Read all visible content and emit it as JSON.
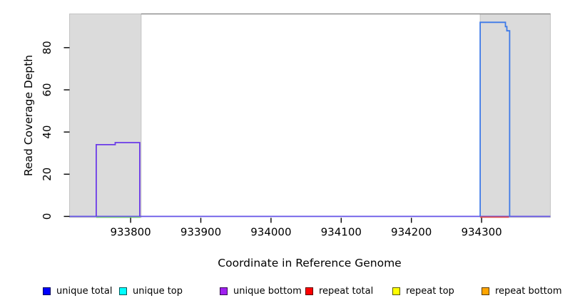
{
  "chart_data": {
    "type": "line",
    "title": "",
    "xlabel": "Coordinate in Reference Genome",
    "ylabel": "Read Coverage Depth",
    "xlim": [
      933713,
      934398
    ],
    "ylim": [
      0,
      96
    ],
    "x_ticks": [
      933800,
      933900,
      934000,
      934100,
      934200,
      934300
    ],
    "y_ticks": [
      0,
      20,
      40,
      60,
      80
    ],
    "grid": false,
    "legend_position": "bottom",
    "legend": [
      {
        "label": "unique total",
        "color": "#0000FF"
      },
      {
        "label": "unique top",
        "color": "#00FFFF"
      },
      {
        "label": "unique bottom",
        "color": "#A020F0"
      },
      {
        "label": "repeat total",
        "color": "#FF0000"
      },
      {
        "label": "repeat top",
        "color": "#FFFF00"
      },
      {
        "label": "repeat bottom",
        "color": "#FFA500"
      }
    ],
    "shaded_regions": [
      {
        "name": "left-gray-region",
        "x_start": 933713,
        "x_end": 933815,
        "fill": "#DBDBDB",
        "border": "#C4C4C4"
      },
      {
        "name": "right-gray-region",
        "x_start": 934298,
        "x_end": 934398,
        "fill": "#DBDBDB",
        "border": "#C4C4C4"
      }
    ],
    "top_line": {
      "x_start": 933815,
      "x_end": 934398,
      "y": 96,
      "color": "#8F8F8F"
    },
    "series": [
      {
        "name": "baseline-coverage",
        "color": "#6352E6",
        "width": 1.8,
        "offset": 0,
        "points": [
          [
            933713,
            0
          ],
          [
            934398,
            0
          ]
        ]
      },
      {
        "name": "green-zero-segment",
        "color": "#7FC87F",
        "width": 1.5,
        "offset": 1.4,
        "points": [
          [
            933751,
            0
          ],
          [
            933814,
            0
          ]
        ]
      },
      {
        "name": "repeat-total-zero-segment",
        "color": "#E04B4B",
        "width": 1.8,
        "offset": 1.0,
        "points": [
          [
            934298,
            0
          ],
          [
            934339,
            0
          ]
        ]
      },
      {
        "name": "unique-bottom-peak",
        "color": "#6B3BE8",
        "width": 1.8,
        "offset": 0,
        "points": [
          [
            933751,
            0
          ],
          [
            933751,
            34
          ],
          [
            933778,
            34
          ],
          [
            933778,
            35
          ],
          [
            933813,
            35
          ],
          [
            933813,
            0
          ]
        ]
      },
      {
        "name": "unique-total-peak",
        "color": "#3E7AE8",
        "width": 1.8,
        "offset": 0,
        "points": [
          [
            934298,
            0
          ],
          [
            934298,
            92
          ],
          [
            934334,
            92
          ],
          [
            934334,
            90
          ],
          [
            934336,
            90
          ],
          [
            934336,
            88
          ],
          [
            934340,
            88
          ],
          [
            934340,
            0
          ]
        ]
      }
    ]
  }
}
